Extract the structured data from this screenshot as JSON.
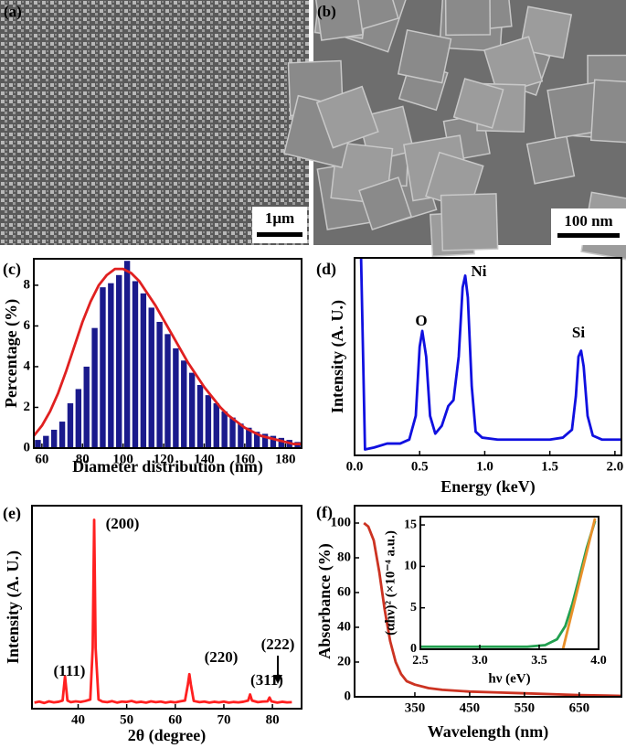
{
  "images": [
    {
      "panel_label": "(a)",
      "scale_bar": "1μm"
    },
    {
      "panel_label": "(b)",
      "scale_bar": "100 nm"
    }
  ],
  "chart_data": [
    {
      "type": "bar",
      "panel_label": "(c)",
      "xlabel": "Diameter distribution (nm)",
      "ylabel": "Percentage (%)",
      "xlim": [
        56,
        188
      ],
      "ylim": [
        0,
        9.3
      ],
      "xticks": [
        60,
        80,
        100,
        120,
        140,
        160,
        180
      ],
      "yticks": [
        0,
        2,
        4,
        6,
        8
      ],
      "series": [
        {
          "type": "bar",
          "color": "#1a1a8c",
          "x": [
            58,
            62,
            66,
            70,
            74,
            78,
            82,
            86,
            90,
            94,
            98,
            102,
            106,
            110,
            114,
            118,
            122,
            126,
            130,
            134,
            138,
            142,
            146,
            150,
            154,
            158,
            162,
            166,
            170,
            174,
            178,
            182,
            186
          ],
          "values": [
            0.4,
            0.6,
            0.9,
            1.3,
            2.2,
            2.9,
            4.0,
            5.9,
            7.9,
            8.1,
            8.5,
            9.2,
            8.2,
            7.6,
            6.9,
            6.2,
            5.6,
            4.9,
            4.3,
            3.7,
            3.1,
            2.6,
            2.2,
            1.8,
            1.5,
            1.2,
            1.0,
            0.8,
            0.7,
            0.6,
            0.5,
            0.4,
            0.3
          ]
        },
        {
          "type": "line",
          "color": "#e02020",
          "x": [
            56,
            60,
            64,
            68,
            72,
            76,
            80,
            84,
            88,
            92,
            96,
            100,
            104,
            108,
            112,
            116,
            120,
            124,
            128,
            132,
            136,
            140,
            144,
            148,
            152,
            156,
            160,
            164,
            168,
            172,
            176,
            180,
            184,
            188
          ],
          "values": [
            0.6,
            1.1,
            1.8,
            2.7,
            3.8,
            5.0,
            6.2,
            7.2,
            8.0,
            8.5,
            8.8,
            8.8,
            8.6,
            8.2,
            7.6,
            7.0,
            6.3,
            5.6,
            4.9,
            4.2,
            3.6,
            3.0,
            2.5,
            2.0,
            1.6,
            1.3,
            1.0,
            0.8,
            0.6,
            0.5,
            0.4,
            0.3,
            0.2,
            0.2
          ]
        }
      ]
    },
    {
      "type": "line",
      "panel_label": "(d)",
      "xlabel": "Energy (keV)",
      "ylabel": "Intensity (A. U.)",
      "xlim": [
        0,
        2.05
      ],
      "ylim": [
        0,
        100
      ],
      "xticks": [
        {
          "value": 0,
          "label": "0.0"
        },
        0.5,
        {
          "value": 1,
          "label": "1.0"
        },
        1.5,
        {
          "value": 2,
          "label": "2.0"
        }
      ],
      "annotations": [
        "O",
        "Ni",
        "Si"
      ],
      "series": [
        {
          "type": "line",
          "color": "#1010e0",
          "x": [
            0.05,
            0.08,
            0.15,
            0.25,
            0.35,
            0.42,
            0.47,
            0.5,
            0.52,
            0.55,
            0.58,
            0.62,
            0.67,
            0.72,
            0.76,
            0.8,
            0.83,
            0.85,
            0.87,
            0.9,
            0.93,
            0.98,
            1.1,
            1.2,
            1.3,
            1.4,
            1.5,
            1.6,
            1.67,
            1.7,
            1.72,
            1.74,
            1.76,
            1.79,
            1.83,
            1.9,
            2.0,
            2.05
          ],
          "values": [
            100,
            3,
            4,
            6,
            6,
            8,
            20,
            55,
            63,
            50,
            20,
            11,
            15,
            25,
            28,
            50,
            85,
            91,
            80,
            35,
            12,
            9,
            8,
            8,
            8,
            8,
            8,
            9,
            13,
            30,
            50,
            53,
            45,
            20,
            10,
            8,
            8,
            8
          ]
        }
      ]
    },
    {
      "type": "line",
      "panel_label": "(e)",
      "xlabel": "2θ (degree)",
      "ylabel": "Intensity (A. U.)",
      "xlim": [
        30.5,
        86
      ],
      "ylim": [
        0,
        100
      ],
      "xticks": [
        40,
        50,
        60,
        70,
        80
      ],
      "annotations": [
        "(111)",
        "(200)",
        "(220)",
        "(311)",
        "(222)"
      ],
      "series": [
        {
          "type": "line",
          "color": "#ff2020",
          "x": [
            31,
            32,
            33,
            34,
            35,
            36,
            36.8,
            37.3,
            37.8,
            38.5,
            39.5,
            40.5,
            41.5,
            42.5,
            43,
            43.3,
            43.6,
            44.2,
            45,
            46,
            47,
            48,
            49,
            50,
            51,
            52,
            53,
            54,
            55,
            56,
            57,
            58,
            59,
            60,
            61,
            62,
            62.6,
            62.9,
            63.2,
            63.8,
            65,
            66,
            67,
            68,
            69,
            70,
            71,
            72,
            73,
            74,
            75,
            75.4,
            75.8,
            77,
            78,
            79,
            79.4,
            79.8,
            81,
            82,
            83,
            84
          ],
          "values": [
            3,
            3.5,
            2.8,
            3.6,
            3.1,
            3.4,
            4,
            16,
            4,
            3.2,
            3.6,
            3.3,
            3.8,
            4.5,
            30,
            93,
            30,
            4.5,
            3.5,
            3.2,
            3.7,
            3.0,
            3.5,
            3.3,
            3.8,
            3.1,
            3.4,
            3.0,
            3.6,
            3.2,
            3.5,
            3.0,
            3.4,
            3.1,
            3.6,
            4,
            12,
            17,
            12,
            3.8,
            3.2,
            3.5,
            3.0,
            3.4,
            3.1,
            3.5,
            3.0,
            3.3,
            3.1,
            3.4,
            4,
            7,
            4,
            3.2,
            3.5,
            3.6,
            5.5,
            3.6,
            3.0,
            3.4,
            3.1,
            3.2
          ]
        }
      ]
    },
    {
      "type": "line",
      "panel_label": "(f)",
      "xlabel": "Wavelength (nm)",
      "ylabel": "Absorbance (%)",
      "xlim": [
        240,
        727
      ],
      "ylim": [
        0,
        110
      ],
      "xticks": [
        350,
        450,
        550,
        650
      ],
      "yticks": [
        0,
        20,
        40,
        60,
        80,
        100
      ],
      "series": [
        {
          "type": "line",
          "color": "#cc3322",
          "x": [
            257,
            265,
            275,
            285,
            295,
            305,
            315,
            325,
            335,
            350,
            375,
            400,
            450,
            500,
            550,
            600,
            650,
            700,
            727
          ],
          "values": [
            100,
            98,
            90,
            72,
            50,
            32,
            20,
            13,
            9,
            7,
            5,
            4,
            3,
            2.5,
            2,
            1.5,
            1,
            0.7,
            0.5
          ]
        }
      ],
      "inset": {
        "type": "line",
        "xlabel": "hν (eV)",
        "ylabel": "(αhν)² (×10⁻⁴ a.u.)",
        "xlim": [
          2.5,
          4.0
        ],
        "ylim": [
          0,
          16
        ],
        "xticks": [
          2.5,
          {
            "value": 3,
            "label": "3.0"
          },
          3.5,
          {
            "value": 4,
            "label": "4.0"
          }
        ],
        "yticks": [
          0,
          5,
          10,
          15
        ],
        "series": [
          {
            "type": "line",
            "color": "#22a050",
            "x": [
              2.5,
              2.8,
              3.1,
              3.4,
              3.55,
              3.65,
              3.72,
              3.78,
              3.84,
              3.9,
              3.97
            ],
            "values": [
              0.3,
              0.3,
              0.3,
              0.3,
              0.5,
              1.2,
              2.8,
              5.5,
              8.8,
              12.2,
              15.5
            ]
          },
          {
            "type": "line",
            "color": "#e8902a",
            "x": [
              3.7,
              3.97
            ],
            "values": [
              0,
              15.8
            ]
          }
        ]
      }
    }
  ]
}
